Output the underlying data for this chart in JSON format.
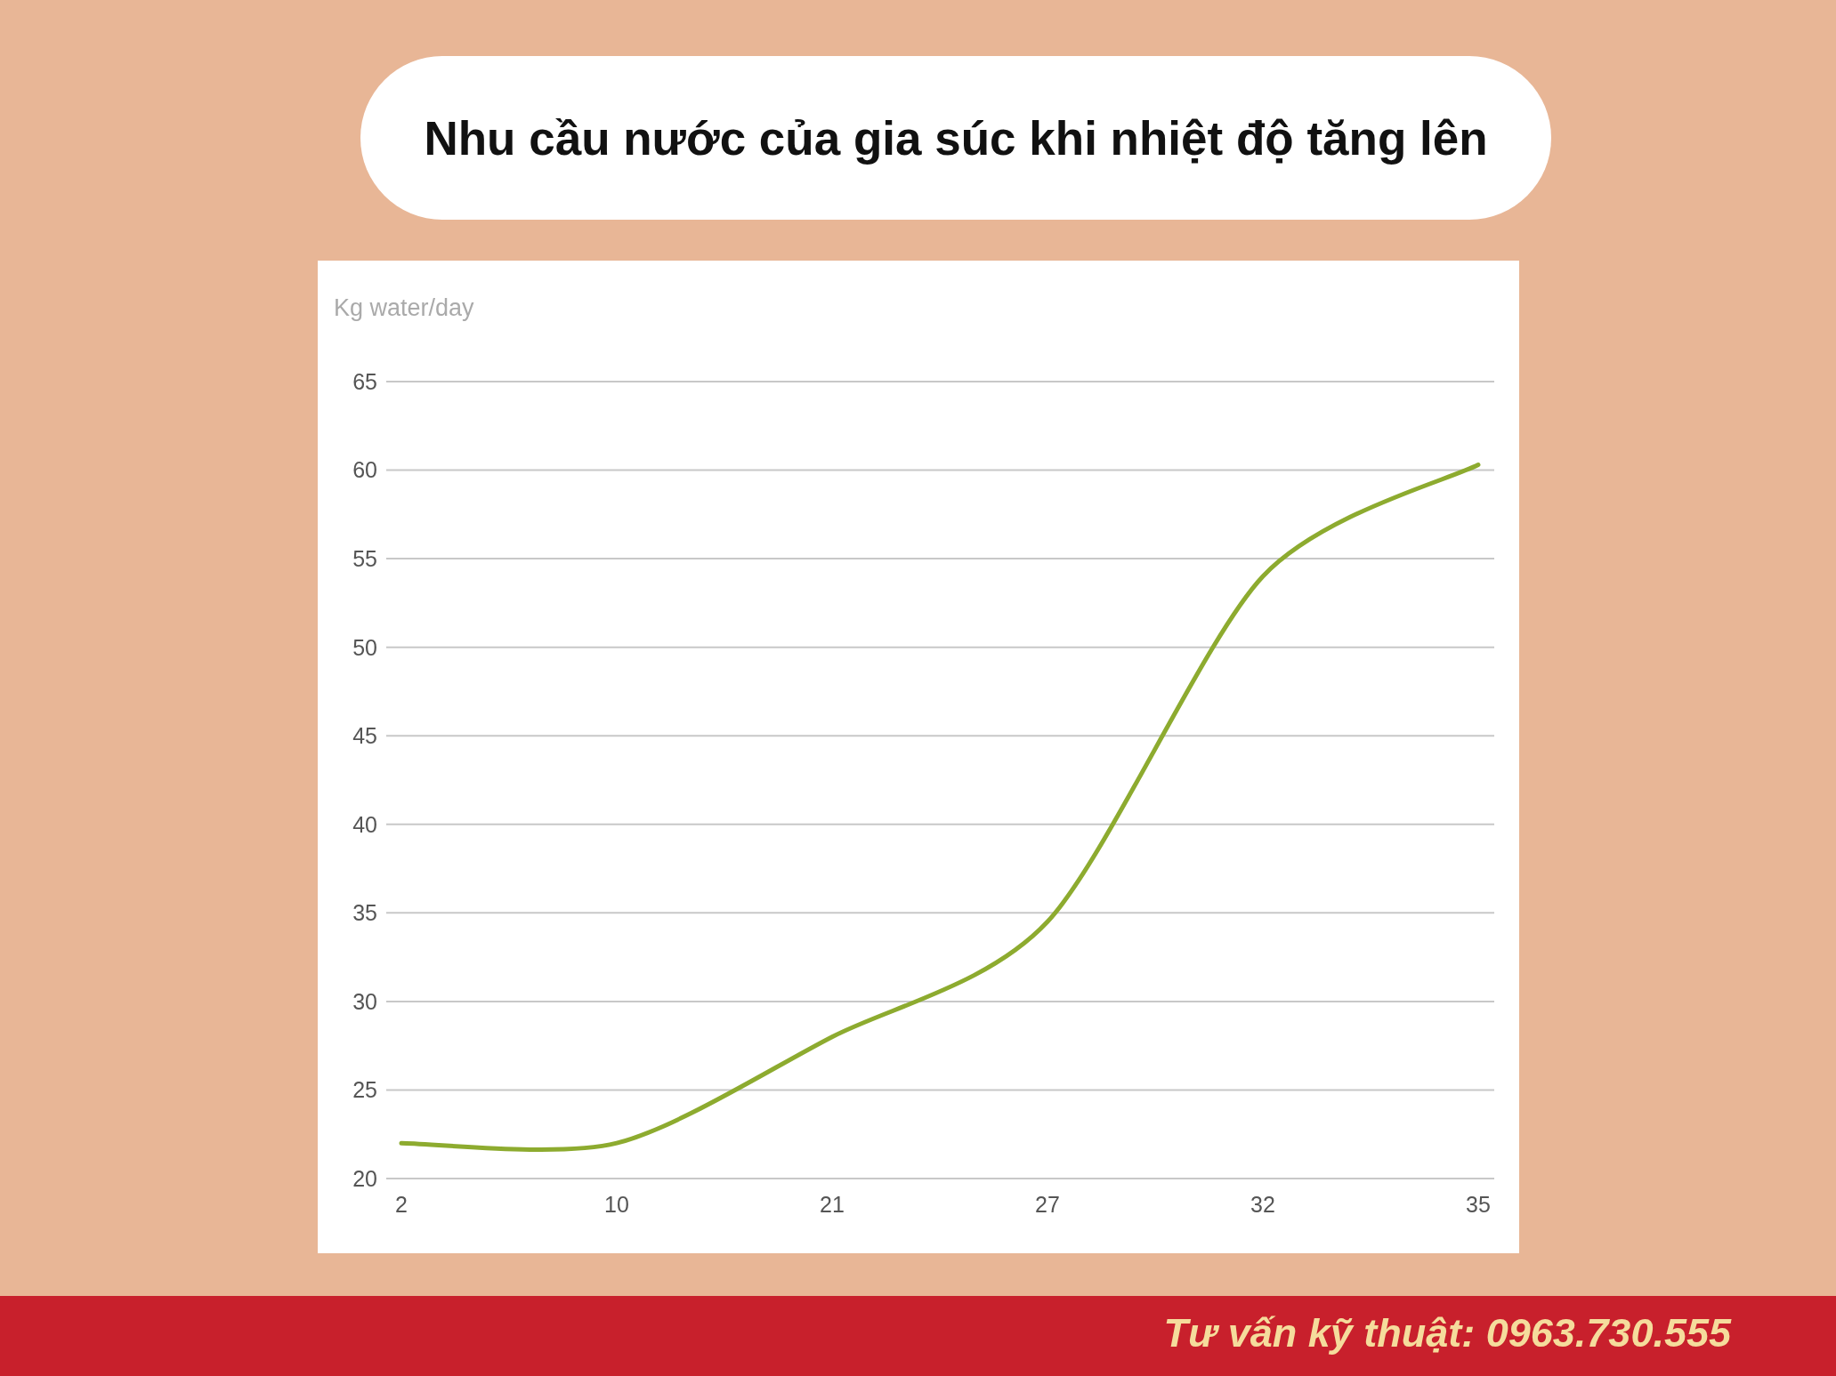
{
  "chart_data": {
    "type": "line",
    "title": "Nhu cầu nước của gia súc khi nhiệt độ tăng lên",
    "ylabel": "Kg water/day",
    "categories": [
      "2",
      "10",
      "21",
      "27",
      "32",
      "35"
    ],
    "values": [
      22,
      22,
      28,
      34.5,
      54,
      60.3
    ],
    "color": "#8dab2f",
    "ylim": [
      20,
      65
    ],
    "yticks": [
      20,
      25,
      30,
      35,
      40,
      45,
      50,
      55,
      60,
      65
    ],
    "grid": "y",
    "line_style": "solid",
    "annotations": [
      "Tư vấn kỹ thuật: 0963.730.555"
    ]
  }
}
